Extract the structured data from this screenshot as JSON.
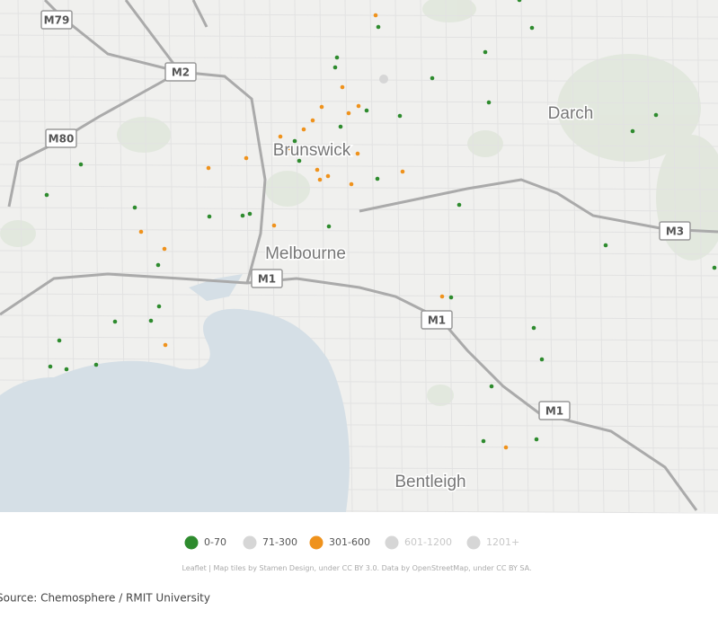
{
  "map": {
    "labels": {
      "roads": [
        "M79",
        "M2",
        "M80",
        "M3",
        "M1",
        "M1",
        "M1"
      ],
      "places": [
        "Brunswick",
        "Darch",
        "Melbourne",
        "Bentleigh"
      ]
    },
    "legend": [
      {
        "label": "0-70",
        "color": "#2e8b2e"
      },
      {
        "label": "71-300",
        "color": "#d6d6d6"
      },
      {
        "label": "301-600",
        "color": "#ef921c"
      },
      {
        "label": "601-1200",
        "color": "#d6d6d6"
      },
      {
        "label": "1201+",
        "color": "#d6d6d6"
      }
    ],
    "attribution": "Leaflet | Map tiles by Stamen Design, under CC BY 3.0. Data by OpenStreetMap, under CC BY SA.",
    "source": "Source: Chemosphere / RMIT University"
  }
}
